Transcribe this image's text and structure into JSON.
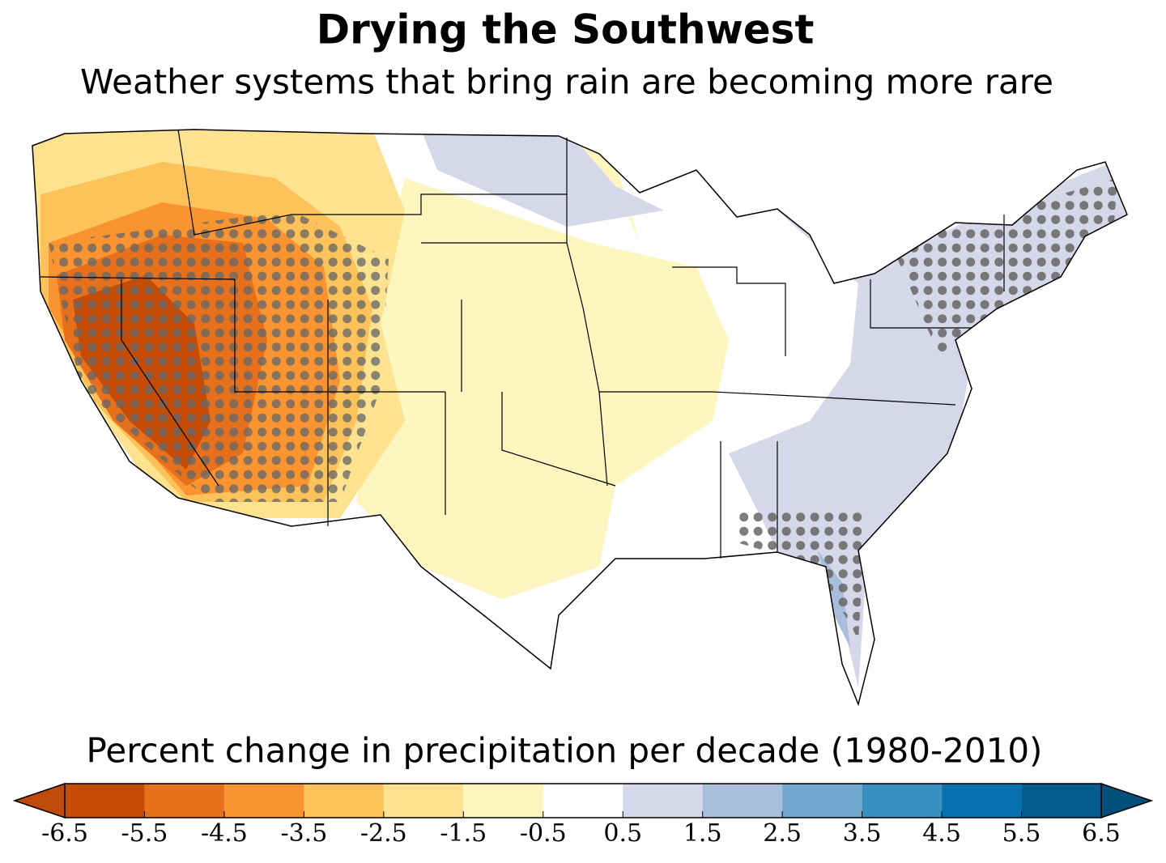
{
  "title": "Drying the Southwest",
  "subtitle": "Weather systems that bring rain are becoming more rare",
  "colorbar": {
    "label": "Percent change in precipitation per decade (1980-2010)",
    "ticks": [
      -6.5,
      -5.5,
      -4.5,
      -3.5,
      -2.5,
      -1.5,
      -0.5,
      0.5,
      1.5,
      2.5,
      3.5,
      4.5,
      5.5,
      6.5
    ],
    "colors": [
      "#c64c06",
      "#e6701b",
      "#fa9430",
      "#fdc25a",
      "#fde290",
      "#fef5bf",
      "#ffffff",
      "#d6d7e9",
      "#a8bedb",
      "#73a8ce",
      "#3790c0",
      "#0771b0",
      "#045b8e"
    ],
    "under_color": "#c04a08",
    "over_color": "#034f7c"
  }
}
